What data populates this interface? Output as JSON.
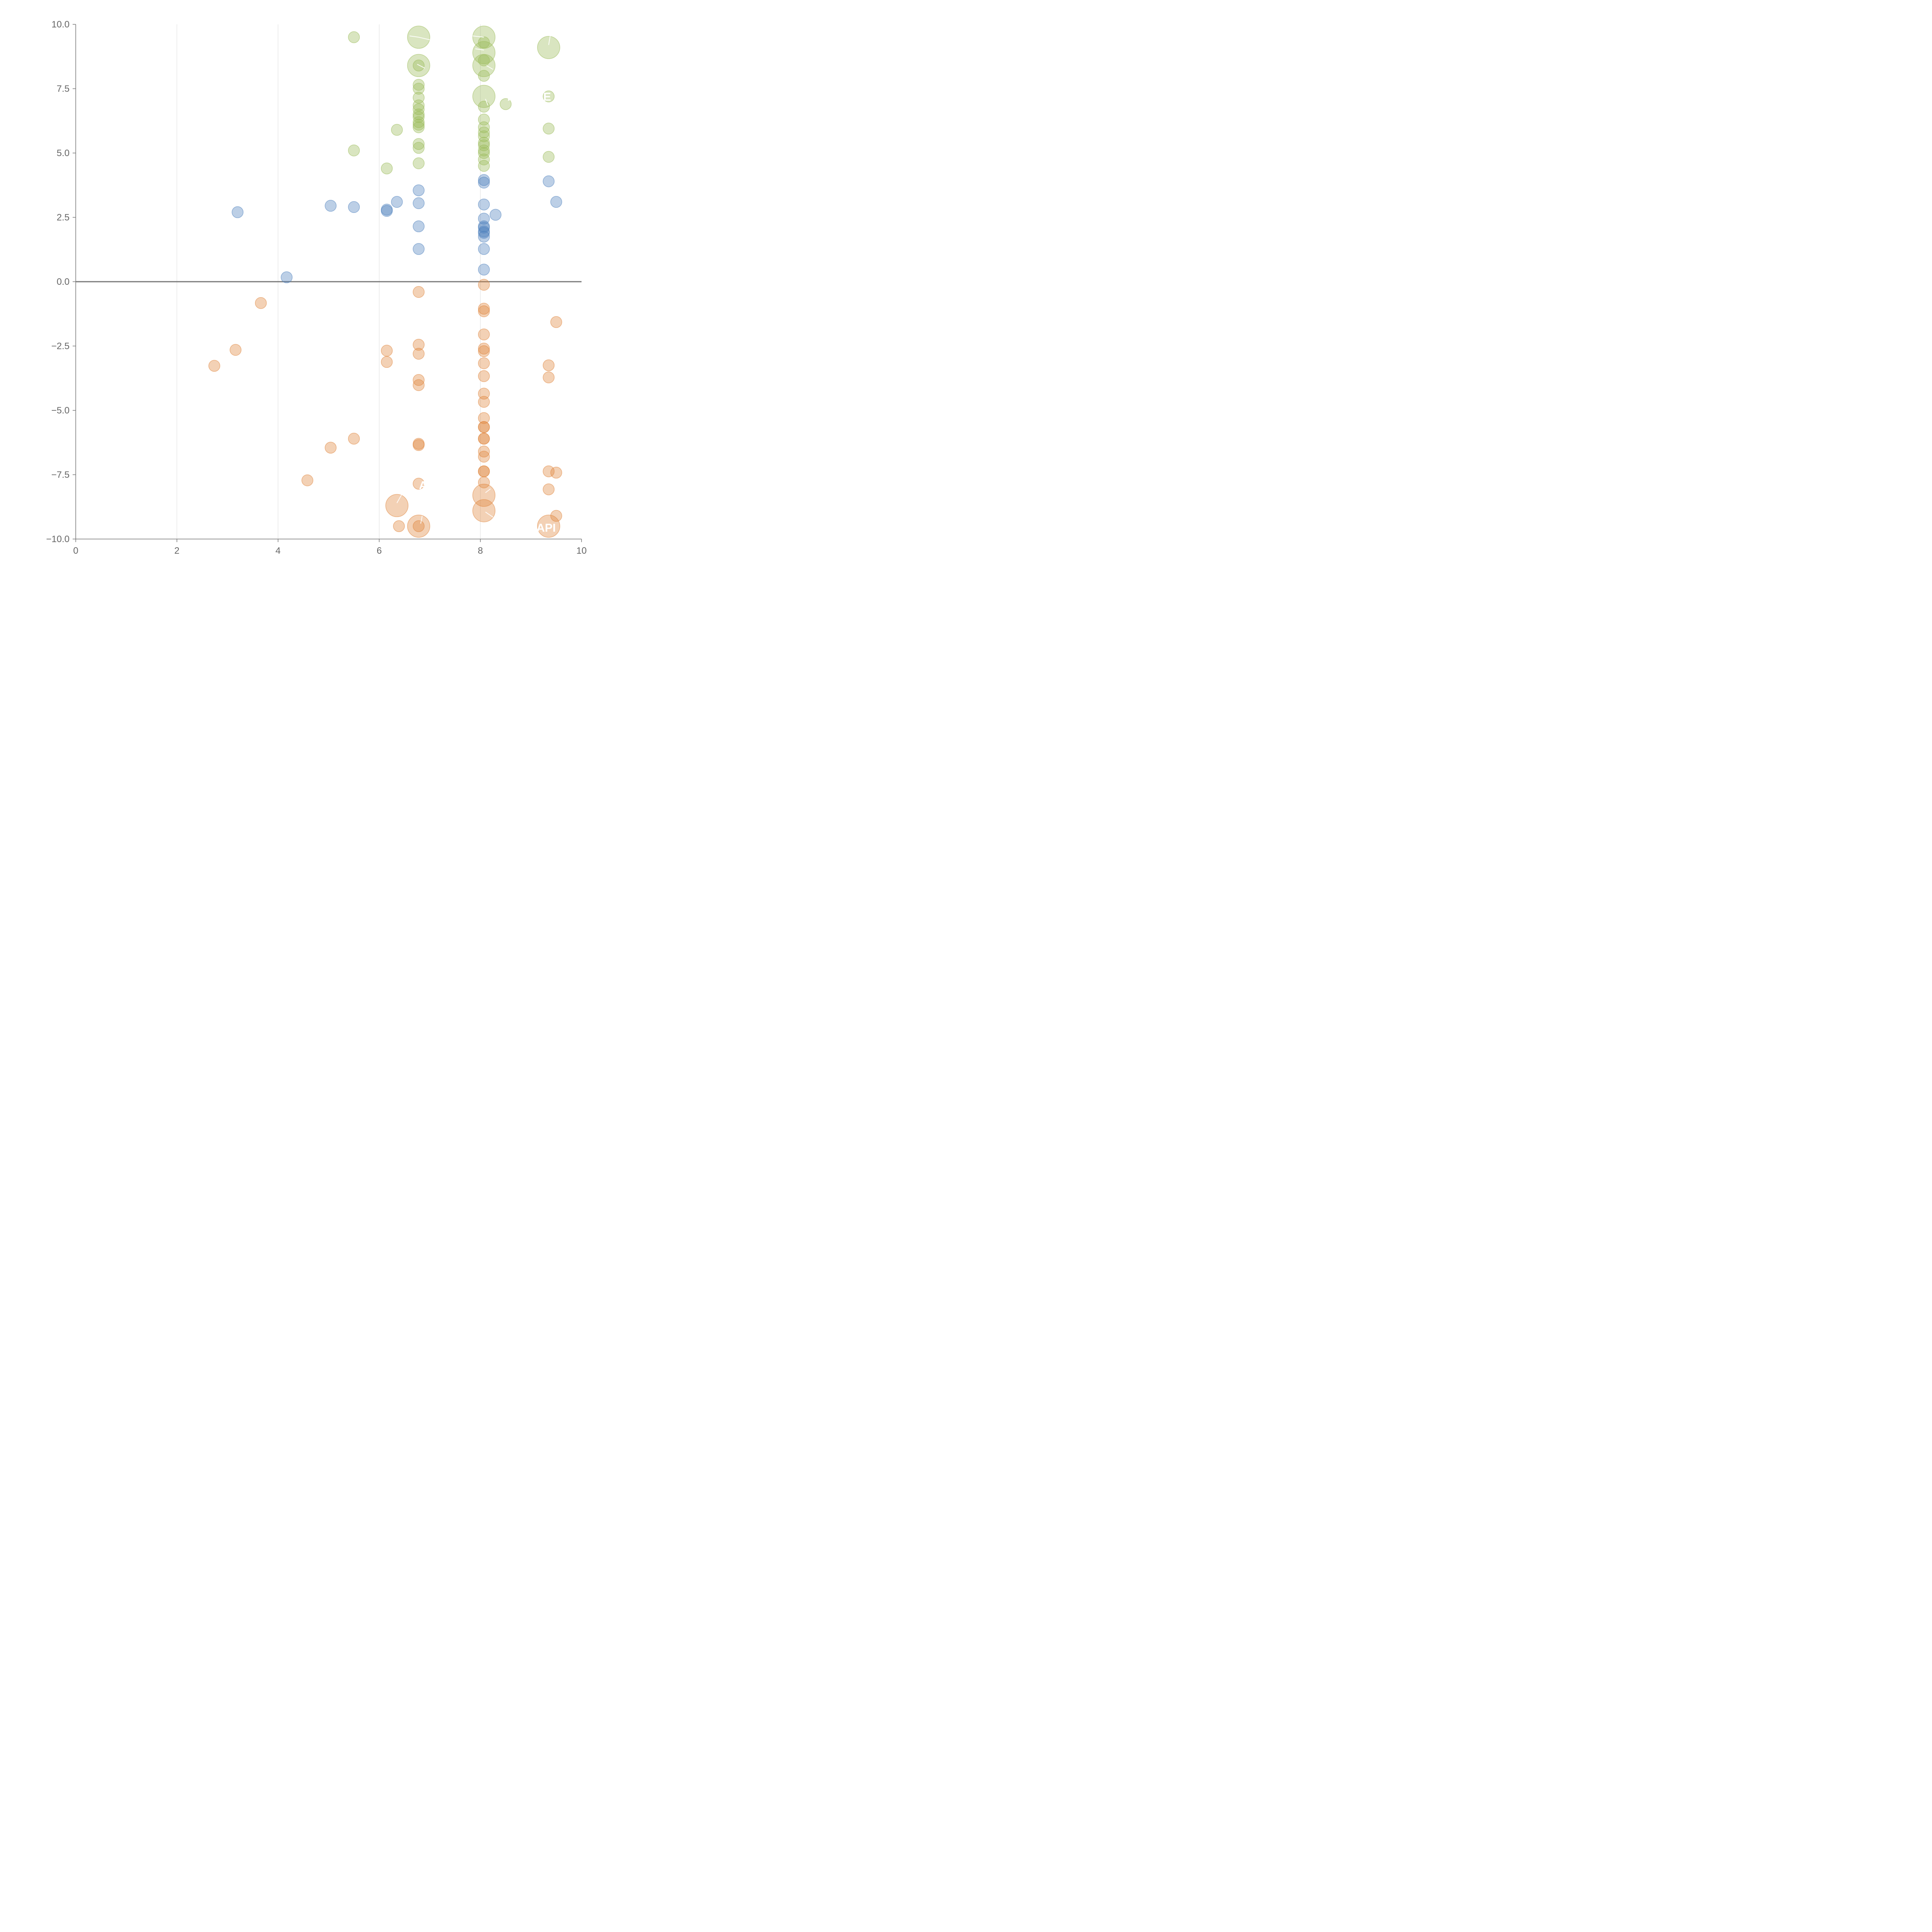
{
  "chart_data": {
    "type": "scatter",
    "title": "",
    "xlabel": "",
    "ylabel": "",
    "xlim": [
      0,
      10
    ],
    "ylim": [
      -10,
      10
    ],
    "x_ticks": [
      "0",
      "2",
      "4",
      "6",
      "8",
      "10"
    ],
    "y_ticks": [
      "10.0",
      "7.5",
      "5.0",
      "2.5",
      "0.0",
      "−2.5",
      "−5.0",
      "−7.5",
      "−10.0"
    ],
    "x_tick_values": [
      0,
      2,
      4,
      6,
      8,
      10
    ],
    "y_tick_values": [
      10,
      7.5,
      5,
      2.5,
      0,
      -2.5,
      -5,
      -7.5,
      -10
    ],
    "vertical_gridlines": [
      2,
      4,
      6,
      8
    ],
    "zero_line": 0,
    "point_labels": [
      {
        "text": "F",
        "x": 8.6,
        "y": 7.2,
        "color": "green"
      },
      {
        "text": "E",
        "x": 9.32,
        "y": 7.2,
        "color": "green"
      },
      {
        "text": "AI",
        "x": 6.9,
        "y": -7.9,
        "color": "orange"
      },
      {
        "text": "API",
        "x": 9.3,
        "y": -9.55,
        "color": "orange"
      }
    ],
    "colors": {
      "green": "#9bbb59",
      "blue": "#4f81bd",
      "orange": "#e0853c"
    },
    "series": [
      {
        "color": "green",
        "points": [
          [
            5.5,
            9.5,
            1
          ],
          [
            5.5,
            5.1,
            1
          ],
          [
            6.15,
            4.4,
            1
          ],
          [
            6.35,
            5.9,
            1
          ],
          [
            6.78,
            9.5,
            3
          ],
          [
            6.78,
            8.4,
            3
          ],
          [
            6.78,
            8.4,
            1
          ],
          [
            6.78,
            7.65,
            1
          ],
          [
            6.78,
            7.5,
            1
          ],
          [
            6.78,
            7.15,
            1
          ],
          [
            6.78,
            6.85,
            1
          ],
          [
            6.78,
            6.7,
            1
          ],
          [
            6.78,
            6.5,
            1
          ],
          [
            6.78,
            6.4,
            1
          ],
          [
            6.78,
            6.2,
            1
          ],
          [
            6.78,
            6.1,
            1
          ],
          [
            6.78,
            6.0,
            1
          ],
          [
            6.78,
            5.35,
            1
          ],
          [
            6.78,
            5.2,
            1
          ],
          [
            6.78,
            4.6,
            1
          ],
          [
            8.07,
            9.5,
            3
          ],
          [
            8.07,
            9.3,
            1
          ],
          [
            8.07,
            8.9,
            3
          ],
          [
            8.07,
            8.4,
            3
          ],
          [
            8.07,
            8.6,
            1
          ],
          [
            8.07,
            8.0,
            1
          ],
          [
            8.07,
            7.2,
            3
          ],
          [
            8.07,
            6.8,
            1
          ],
          [
            8.07,
            6.3,
            1
          ],
          [
            8.07,
            6.0,
            1
          ],
          [
            8.07,
            5.8,
            1
          ],
          [
            8.07,
            5.65,
            1
          ],
          [
            8.07,
            5.4,
            1
          ],
          [
            8.07,
            5.3,
            1
          ],
          [
            8.07,
            5.1,
            1
          ],
          [
            8.07,
            5.0,
            1
          ],
          [
            8.07,
            4.75,
            1
          ],
          [
            8.07,
            4.5,
            1
          ],
          [
            8.5,
            6.9,
            1
          ],
          [
            9.35,
            9.1,
            3
          ],
          [
            9.35,
            7.2,
            1
          ],
          [
            9.35,
            5.95,
            1
          ],
          [
            9.35,
            4.85,
            1
          ]
        ]
      },
      {
        "color": "blue",
        "points": [
          [
            3.2,
            2.7,
            1
          ],
          [
            4.17,
            0.17,
            1
          ],
          [
            5.04,
            2.95,
            1
          ],
          [
            5.5,
            2.9,
            1
          ],
          [
            6.15,
            2.75,
            1
          ],
          [
            6.15,
            2.8,
            1
          ],
          [
            6.35,
            3.1,
            1
          ],
          [
            6.78,
            3.55,
            1
          ],
          [
            6.78,
            3.05,
            1
          ],
          [
            6.78,
            2.15,
            1
          ],
          [
            6.78,
            1.27,
            1
          ],
          [
            8.07,
            3.95,
            1
          ],
          [
            8.07,
            3.85,
            1
          ],
          [
            8.07,
            3.0,
            1
          ],
          [
            8.07,
            2.45,
            1
          ],
          [
            8.07,
            2.15,
            1
          ],
          [
            8.07,
            2.1,
            1
          ],
          [
            8.07,
            1.95,
            1
          ],
          [
            8.07,
            1.9,
            1
          ],
          [
            8.07,
            1.75,
            1
          ],
          [
            8.07,
            1.27,
            1
          ],
          [
            8.07,
            0.47,
            1
          ],
          [
            8.3,
            2.6,
            1
          ],
          [
            9.35,
            3.9,
            1
          ],
          [
            9.5,
            3.1,
            1
          ]
        ]
      },
      {
        "color": "orange",
        "points": [
          [
            2.74,
            -3.27,
            1
          ],
          [
            3.16,
            -2.65,
            1
          ],
          [
            3.66,
            -0.83,
            1
          ],
          [
            4.58,
            -7.72,
            1
          ],
          [
            5.04,
            -6.45,
            1
          ],
          [
            5.5,
            -6.1,
            1
          ],
          [
            6.15,
            -2.68,
            1
          ],
          [
            6.15,
            -3.12,
            1
          ],
          [
            6.35,
            -8.7,
            3
          ],
          [
            6.39,
            -9.5,
            1
          ],
          [
            6.78,
            -0.4,
            1
          ],
          [
            6.78,
            -2.45,
            1
          ],
          [
            6.78,
            -2.8,
            1
          ],
          [
            6.78,
            -3.82,
            1
          ],
          [
            6.78,
            -4.02,
            1
          ],
          [
            6.78,
            -6.3,
            1
          ],
          [
            6.78,
            -6.35,
            1
          ],
          [
            6.78,
            -7.85,
            1
          ],
          [
            6.78,
            -9.5,
            3
          ],
          [
            6.78,
            -9.5,
            1
          ],
          [
            8.07,
            -0.12,
            1
          ],
          [
            8.07,
            -1.05,
            1
          ],
          [
            8.07,
            -1.15,
            1
          ],
          [
            8.07,
            -2.05,
            1
          ],
          [
            8.07,
            -2.6,
            1
          ],
          [
            8.07,
            -2.7,
            1
          ],
          [
            8.07,
            -3.17,
            1
          ],
          [
            8.07,
            -3.67,
            1
          ],
          [
            8.07,
            -4.35,
            1
          ],
          [
            8.07,
            -4.67,
            1
          ],
          [
            8.07,
            -5.3,
            1
          ],
          [
            8.07,
            -5.65,
            1
          ],
          [
            8.07,
            -5.65,
            1
          ],
          [
            8.07,
            -6.1,
            1
          ],
          [
            8.07,
            -6.1,
            1
          ],
          [
            8.07,
            -6.6,
            1
          ],
          [
            8.07,
            -6.8,
            1
          ],
          [
            8.07,
            -7.37,
            1
          ],
          [
            8.07,
            -7.37,
            1
          ],
          [
            8.07,
            -7.8,
            1
          ],
          [
            8.07,
            -8.3,
            3
          ],
          [
            8.07,
            -8.9,
            3
          ],
          [
            9.35,
            -3.25,
            1
          ],
          [
            9.35,
            -3.72,
            1
          ],
          [
            9.35,
            -7.37,
            1
          ],
          [
            9.35,
            -8.07,
            1
          ],
          [
            9.35,
            -9.5,
            3
          ],
          [
            9.5,
            -1.57,
            1
          ],
          [
            9.5,
            -7.42,
            1
          ],
          [
            9.5,
            -9.1,
            1
          ]
        ]
      }
    ]
  }
}
